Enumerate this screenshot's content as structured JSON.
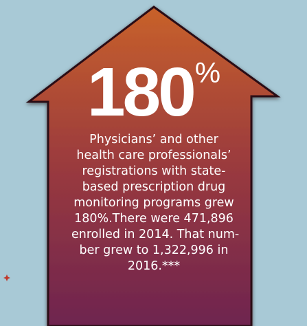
{
  "graphic": {
    "stat": {
      "value": "180",
      "unit": "%"
    },
    "description_lines": [
      "Physicians’ and other",
      "health care professionals’",
      "registrations with state-",
      "based prescription drug",
      "monitoring programs grew",
      "180%.There were 471,896",
      "enrolled in 2014. That num-",
      "ber grew to 1,322,996 in",
      "2016.***"
    ]
  },
  "colors": {
    "background": "#a8c9d6",
    "arrow_top": "#c8612a",
    "arrow_middle": "#9a3a3e",
    "arrow_bottom": "#6e2450",
    "border": "#2a0e18",
    "text": "#ffffff",
    "accent_mark": "#c0392b"
  },
  "icons": {
    "arrow": "up-arrow-shape",
    "decoration": "star-icon"
  }
}
